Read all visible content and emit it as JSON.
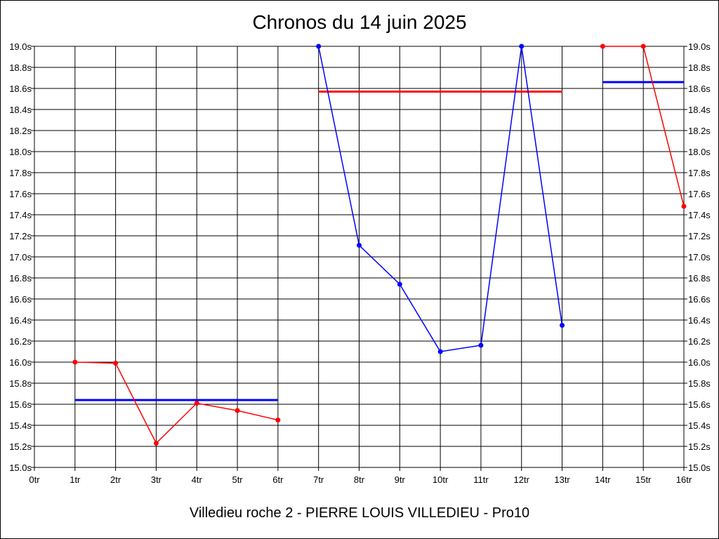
{
  "chart_data": {
    "type": "line",
    "title": "Chronos du 14 juin 2025",
    "subtitle": "Villedieu roche 2 - PIERRE LOUIS VILLEDIEU - Pro10",
    "x_tick_labels": [
      "0tr",
      "1tr",
      "2tr",
      "3tr",
      "4tr",
      "5tr",
      "6tr",
      "7tr",
      "8tr",
      "9tr",
      "10tr",
      "11tr",
      "12tr",
      "13tr",
      "14tr",
      "15tr",
      "16tr"
    ],
    "y_tick_labels": [
      "15.0s",
      "15.2s",
      "15.4s",
      "15.6s",
      "15.8s",
      "16.0s",
      "16.2s",
      "16.4s",
      "16.6s",
      "16.8s",
      "17.0s",
      "17.2s",
      "17.4s",
      "17.6s",
      "17.8s",
      "18.0s",
      "18.2s",
      "18.4s",
      "18.6s",
      "18.8s",
      "19.0s"
    ],
    "xlim": [
      0,
      16
    ],
    "ylim": [
      15.0,
      19.0
    ],
    "y_tick_step": 0.2,
    "grid": true,
    "series": [
      {
        "color": "#ff0000",
        "points": [
          [
            1,
            16.0
          ],
          [
            2,
            15.99
          ],
          [
            3,
            15.23
          ],
          [
            4,
            15.61
          ],
          [
            5,
            15.54
          ],
          [
            6,
            15.45
          ]
        ],
        "average": 15.64,
        "average_color": "#0000ff",
        "average_range": [
          1,
          6
        ]
      },
      {
        "color": "#0000ff",
        "points": [
          [
            7,
            19.0
          ],
          [
            8,
            17.11
          ],
          [
            9,
            16.74
          ],
          [
            10,
            16.1
          ],
          [
            11,
            16.16
          ],
          [
            12,
            19.0
          ],
          [
            13,
            16.35
          ]
        ],
        "average": 18.57,
        "average_color": "#ff0000",
        "average_range": [
          7,
          13
        ]
      },
      {
        "color": "#ff0000",
        "points": [
          [
            14,
            19.0
          ],
          [
            15,
            19.0
          ],
          [
            16,
            17.48
          ]
        ],
        "average": 18.66,
        "average_color": "#0000ff",
        "average_range": [
          14,
          16
        ]
      }
    ]
  }
}
